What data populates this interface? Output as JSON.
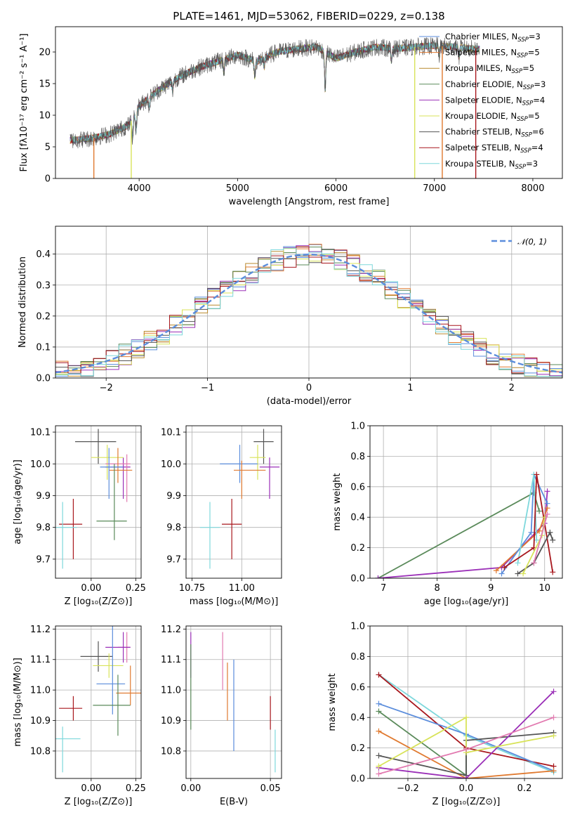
{
  "colors": {
    "Chabrier MILES": "#5b8ddc",
    "Salpeter MILES": "#e07a30",
    "Kroupa MILES": "#b9892d",
    "Chabrier ELODIE": "#5a8a5a",
    "Salpeter ELODIE": "#9b30b8",
    "Kroupa ELODIE": "#d8e35a",
    "Chabrier STELIB": "#555555",
    "Salpeter STELIB": "#a8171d",
    "Kroupa STELIB": "#7ed8dc",
    "pink": "#e27ab0",
    "normal_curve": "#5b8ddc"
  },
  "chart_data": [
    {
      "id": "spectrum",
      "type": "line",
      "title": "PLATE=1461, MJD=53062, FIBERID=0229, z=0.138",
      "xlabel": "wavelength [Angstrom, rest frame]",
      "ylabel": "Flux [fλ10⁻¹⁷ erg cm⁻² s⁻¹ A⁻¹]",
      "xlim": [
        3150,
        8300
      ],
      "ylim": [
        0,
        24
      ],
      "xticks": [
        "4000",
        "5000",
        "6000",
        "7000",
        "8000"
      ],
      "yticks": [
        "0",
        "5",
        "10",
        "15",
        "20"
      ],
      "legend_position": "top-right",
      "legend": [
        {
          "text": "Chabrier MILES, N",
          "sub": "SSP",
          "suffix": "=3",
          "color": "Chabrier MILES"
        },
        {
          "text": "Salpeter MILES, N",
          "sub": "SSP",
          "suffix": "=5",
          "color": "Salpeter MILES"
        },
        {
          "text": "Kroupa MILES, N",
          "sub": "SSP",
          "suffix": "=5",
          "color": "Kroupa MILES"
        },
        {
          "text": "Chabrier ELODIE, N",
          "sub": "SSP",
          "suffix": "=3",
          "color": "Chabrier ELODIE"
        },
        {
          "text": "Salpeter ELODIE, N",
          "sub": "SSP",
          "suffix": "=4",
          "color": "Salpeter ELODIE"
        },
        {
          "text": "Kroupa ELODIE, N",
          "sub": "SSP",
          "suffix": "=5",
          "color": "Kroupa ELODIE"
        },
        {
          "text": "Chabrier STELIB, N",
          "sub": "SSP",
          "suffix": "=6",
          "color": "Chabrier STELIB"
        },
        {
          "text": "Salpeter STELIB, N",
          "sub": "SSP",
          "suffix": "=4",
          "color": "Salpeter STELIB"
        },
        {
          "text": "Kroupa STELIB, N",
          "sub": "SSP",
          "suffix": "=3",
          "color": "Kroupa STELIB"
        }
      ],
      "continuum": {
        "x": [
          3300,
          3500,
          3700,
          3900,
          4000,
          4200,
          4400,
          4600,
          4800,
          5000,
          5200,
          5400,
          5600,
          5800,
          6000,
          6200,
          6400,
          6600,
          6800,
          7000,
          7200,
          7400
        ],
        "y": [
          6.0,
          6.3,
          7.0,
          8.5,
          11.5,
          14.0,
          16.0,
          17.5,
          18.5,
          19.5,
          18.5,
          20.0,
          20.5,
          20.8,
          19.0,
          20.0,
          20.8,
          20.5,
          20.8,
          21.0,
          20.8,
          20.5
        ]
      },
      "cutoffs": [
        {
          "color": "Salpeter MILES",
          "x": 3540,
          "side": "left"
        },
        {
          "color": "Kroupa ELODIE",
          "x": 3920,
          "side": "left"
        },
        {
          "color": "Kroupa ELODIE",
          "x": 6800,
          "side": "right"
        },
        {
          "color": "Salpeter MILES",
          "x": 7080,
          "side": "right"
        },
        {
          "color": "Salpeter STELIB",
          "x": 7420,
          "side": "right"
        }
      ]
    },
    {
      "id": "residuals",
      "type": "histogram",
      "xlabel": "(data-model)/error",
      "ylabel": "Normed distribution",
      "xlim": [
        -2.5,
        2.5
      ],
      "ylim": [
        0,
        0.49
      ],
      "xticks": [
        "−2",
        "−1",
        "0",
        "1",
        "2"
      ],
      "yticks": [
        "0.0",
        "0.1",
        "0.2",
        "0.3",
        "0.4"
      ],
      "bins": 40,
      "legend": "𝒩(0, 1)",
      "legend_position": "top-right"
    },
    {
      "id": "z_vs_age",
      "type": "errorbar",
      "xlabel": "Z [log₁₀(Z/Z⊙)]",
      "ylabel": "age  [log₁₀(age/yr)]",
      "xlim": [
        -0.2,
        0.28
      ],
      "ylim": [
        9.64,
        10.12
      ],
      "xticks": [
        "0.00",
        "0.25"
      ],
      "yticks": [
        "9.7",
        "9.8",
        "9.9",
        "10.0",
        "10.1"
      ],
      "points": [
        {
          "c": "Chabrier STELIB",
          "x": 0.04,
          "xe": [
            0.13,
            0.1
          ],
          "y": 10.07,
          "ye": [
            0.07,
            0.04
          ]
        },
        {
          "c": "Salpeter ELODIE",
          "x": 0.18,
          "xe": [
            0.1,
            0.04
          ],
          "y": 9.99,
          "ye": [
            0.1,
            0.03
          ]
        },
        {
          "c": "Kroupa ELODIE",
          "x": 0.09,
          "xe": [
            0.09,
            0.09
          ],
          "y": 10.02,
          "ye": [
            0.07,
            0.04
          ]
        },
        {
          "c": "pink",
          "x": 0.2,
          "xe": [
            0.12,
            0.02
          ],
          "y": 10.0,
          "ye": [
            0.12,
            0.03
          ]
        },
        {
          "c": "Salpeter MILES",
          "x": 0.15,
          "xe": [
            0.05,
            0.08
          ],
          "y": 9.98,
          "ye": [
            0.04,
            0.07
          ]
        },
        {
          "c": "Chabrier MILES",
          "x": 0.1,
          "xe": [
            0.05,
            0.08
          ],
          "y": 9.99,
          "ye": [
            0.1,
            0.06
          ]
        },
        {
          "c": "Chabrier ELODIE",
          "x": 0.13,
          "xe": [
            0.1,
            0.07
          ],
          "y": 9.82,
          "ye": [
            0.06,
            0.18
          ]
        },
        {
          "c": "Salpeter STELIB",
          "x": -0.1,
          "xe": [
            0.08,
            0.05
          ],
          "y": 9.81,
          "ye": [
            0.11,
            0.08
          ]
        },
        {
          "c": "Kroupa STELIB",
          "x": -0.16,
          "xe": [
            0.06,
            0.08
          ],
          "y": 9.8,
          "ye": [
            0.13,
            0.08
          ]
        }
      ]
    },
    {
      "id": "mass_vs_age",
      "type": "errorbar",
      "xlabel": "mass [log₁₀(M/M⊙)]",
      "ylabel": "",
      "xlim": [
        10.72,
        11.2
      ],
      "ylim": [
        9.64,
        10.12
      ],
      "xticks": [
        "10.75",
        "11.00"
      ],
      "yticks": [
        "9.7",
        "9.8",
        "9.9",
        "10.0",
        "10.1"
      ],
      "points": [
        {
          "c": "Chabrier STELIB",
          "x": 11.11,
          "xe": [
            0.05,
            0.05
          ],
          "y": 10.07,
          "ye": [
            0.07,
            0.04
          ]
        },
        {
          "c": "Salpeter ELODIE",
          "x": 11.14,
          "xe": [
            0.05,
            0.05
          ],
          "y": 9.99,
          "ye": [
            0.1,
            0.03
          ]
        },
        {
          "c": "Kroupa ELODIE",
          "x": 11.08,
          "xe": [
            0.04,
            0.04
          ],
          "y": 10.02,
          "ye": [
            0.07,
            0.04
          ]
        },
        {
          "c": "Chabrier MILES",
          "x": 10.99,
          "xe": [
            0.1,
            0.09
          ],
          "y": 10.0,
          "ye": [
            0.06,
            0.06
          ]
        },
        {
          "c": "Salpeter MILES",
          "x": 11.0,
          "xe": [
            0.04,
            0.12
          ],
          "y": 9.98,
          "ye": [
            0.09,
            0.03
          ]
        },
        {
          "c": "Salpeter STELIB",
          "x": 10.95,
          "xe": [
            0.05,
            0.05
          ],
          "y": 9.81,
          "ye": [
            0.11,
            0.08
          ]
        },
        {
          "c": "Kroupa STELIB",
          "x": 10.84,
          "xe": [
            0.05,
            0.05
          ],
          "y": 9.8,
          "ye": [
            0.13,
            0.08
          ]
        }
      ]
    },
    {
      "id": "age_vs_weight",
      "type": "line",
      "xlabel": "age  [log₁₀(age/yr)]",
      "ylabel": "mass weight",
      "xlim": [
        6.75,
        10.33
      ],
      "ylim": [
        0,
        1
      ],
      "xticks": [
        "7",
        "8",
        "9",
        "10"
      ],
      "yticks": [
        "0.0",
        "0.2",
        "0.4",
        "0.6",
        "0.8",
        "1.0"
      ],
      "series": [
        {
          "c": "Chabrier ELODIE",
          "x": [
            6.9,
            9.8,
            9.9
          ],
          "y": [
            0.0,
            0.56,
            0.44
          ]
        },
        {
          "c": "Salpeter ELODIE",
          "x": [
            6.9,
            9.2,
            10.0,
            10.05
          ],
          "y": [
            0.0,
            0.07,
            0.36,
            0.57
          ]
        },
        {
          "c": "Salpeter MILES",
          "x": [
            9.1,
            9.9,
            10.05
          ],
          "y": [
            0.05,
            0.31,
            0.46
          ]
        },
        {
          "c": "Chabrier MILES",
          "x": [
            9.2,
            9.75,
            9.8,
            10.05
          ],
          "y": [
            0.03,
            0.3,
            0.68,
            0.49
          ]
        },
        {
          "c": "Kroupa STELIB",
          "x": [
            9.5,
            9.8,
            9.85
          ],
          "y": [
            0.1,
            0.68,
            0.25
          ]
        },
        {
          "c": "Salpeter STELIB",
          "x": [
            9.25,
            9.8,
            9.85,
            10.15
          ],
          "y": [
            0.07,
            0.2,
            0.68,
            0.04
          ]
        },
        {
          "c": "Chabrier STELIB",
          "x": [
            9.5,
            9.8,
            10.1,
            10.15
          ],
          "y": [
            0.03,
            0.1,
            0.3,
            0.25
          ]
        },
        {
          "c": "Kroupa ELODIE",
          "x": [
            9.6,
            9.95,
            10.0
          ],
          "y": [
            0.03,
            0.28,
            0.4
          ]
        },
        {
          "c": "pink",
          "x": [
            9.8,
            10.05
          ],
          "y": [
            0.1,
            0.42
          ]
        }
      ]
    },
    {
      "id": "z_vs_mass",
      "type": "errorbar",
      "xlabel": "Z [log₁₀(Z/Z⊙)]",
      "ylabel": "mass [log₁₀(M/M⊙)]",
      "xlim": [
        -0.2,
        0.28
      ],
      "ylim": [
        10.71,
        11.21
      ],
      "xticks": [
        "0.00",
        "0.25"
      ],
      "yticks": [
        "10.8",
        "10.9",
        "11.0",
        "11.1",
        "11.2"
      ],
      "points": [
        {
          "c": "pink",
          "x": 0.2,
          "xe": [
            0.05,
            0.02
          ],
          "y": 11.14,
          "ye": [
            0.05,
            0.05
          ]
        },
        {
          "c": "Salpeter ELODIE",
          "x": 0.18,
          "xe": [
            0.1,
            0.04
          ],
          "y": 11.14,
          "ye": [
            0.05,
            0.05
          ]
        },
        {
          "c": "Chabrier STELIB",
          "x": 0.04,
          "xe": [
            0.1,
            0.08
          ],
          "y": 11.11,
          "ye": [
            0.05,
            0.05
          ]
        },
        {
          "c": "Kroupa ELODIE",
          "x": 0.1,
          "xe": [
            0.09,
            0.08
          ],
          "y": 11.08,
          "ye": [
            0.04,
            0.04
          ]
        },
        {
          "c": "Chabrier MILES",
          "x": 0.12,
          "xe": [
            0.09,
            0.07
          ],
          "y": 11.02,
          "ye": [
            0.1,
            0.2
          ]
        },
        {
          "c": "Salpeter MILES",
          "x": 0.22,
          "xe": [
            0.08,
            0.06
          ],
          "y": 10.99,
          "ye": [
            0.04,
            0.09
          ]
        },
        {
          "c": "Chabrier ELODIE",
          "x": 0.15,
          "xe": [
            0.14,
            0.07
          ],
          "y": 10.95,
          "ye": [
            0.1,
            0.1
          ]
        },
        {
          "c": "Salpeter STELIB",
          "x": -0.1,
          "xe": [
            0.08,
            0.05
          ],
          "y": 10.94,
          "ye": [
            0.04,
            0.04
          ]
        },
        {
          "c": "Kroupa STELIB",
          "x": -0.16,
          "xe": [
            0.06,
            0.1
          ],
          "y": 10.84,
          "ye": [
            0.11,
            0.04
          ]
        }
      ]
    },
    {
      "id": "ebv_vs_mass",
      "type": "errorbar",
      "xlabel": "E(B-V)",
      "ylabel": "",
      "xlim": [
        -0.003,
        0.057
      ],
      "ylim": [
        10.71,
        11.21
      ],
      "xticks": [
        "0.00",
        "0.05"
      ],
      "yticks": [
        "10.8",
        "10.9",
        "11.0",
        "11.1",
        "11.2"
      ],
      "points": [
        {
          "c": "Salpeter ELODIE",
          "x": 0.0,
          "y": 11.14,
          "ye": [
            0.1,
            0.05
          ]
        },
        {
          "c": "Chabrier ELODIE",
          "x": 0.0,
          "y": 10.95,
          "ye": [
            0.08,
            0.2
          ]
        },
        {
          "c": "pink",
          "x": 0.02,
          "y": 11.1,
          "ye": [
            0.1,
            0.09
          ]
        },
        {
          "c": "Salpeter MILES",
          "x": 0.023,
          "y": 11.0,
          "ye": [
            0.1,
            0.09
          ]
        },
        {
          "c": "Chabrier MILES",
          "x": 0.027,
          "y": 10.95,
          "ye": [
            0.15,
            0.15
          ]
        },
        {
          "c": "Salpeter STELIB",
          "x": 0.05,
          "y": 10.94,
          "ye": [
            0.07,
            0.04
          ]
        },
        {
          "c": "Kroupa STELIB",
          "x": 0.053,
          "y": 10.8,
          "ye": [
            0.07,
            0.07
          ]
        }
      ]
    },
    {
      "id": "z_vs_weight",
      "type": "line",
      "xlabel": "Z [log₁₀(Z/Z⊙)]",
      "ylabel": "mass weight",
      "xlim": [
        -0.33,
        0.33
      ],
      "ylim": [
        0,
        1
      ],
      "xticks": [
        "−0.2",
        "0.0",
        "0.2"
      ],
      "yticks": [
        "0.0",
        "0.2",
        "0.4",
        "0.6",
        "0.8",
        "1.0"
      ],
      "series": [
        {
          "c": "Kroupa STELIB",
          "x": [
            -0.3,
            0.0,
            0.3
          ],
          "y": [
            0.68,
            0.28,
            0.04
          ]
        },
        {
          "c": "Salpeter STELIB",
          "x": [
            -0.3,
            0.0,
            0.3
          ],
          "y": [
            0.68,
            0.2,
            0.08
          ]
        },
        {
          "c": "Chabrier MILES",
          "x": [
            -0.3,
            0.0,
            0.3
          ],
          "y": [
            0.49,
            0.29,
            0.05
          ]
        },
        {
          "c": "Chabrier ELODIE",
          "x": [
            -0.3,
            0.0,
            0.0
          ],
          "y": [
            0.44,
            0.02,
            0.25
          ]
        },
        {
          "c": "Salpeter MILES",
          "x": [
            -0.3,
            0.0,
            0.3
          ],
          "y": [
            0.31,
            0.0,
            0.05
          ]
        },
        {
          "c": "Chabrier STELIB",
          "x": [
            -0.3,
            0.0,
            0.0,
            0.3
          ],
          "y": [
            0.15,
            0.02,
            0.25,
            0.3
          ]
        },
        {
          "c": "Salpeter ELODIE",
          "x": [
            -0.3,
            0.0,
            0.3
          ],
          "y": [
            0.07,
            0.0,
            0.57
          ]
        },
        {
          "c": "Kroupa ELODIE",
          "x": [
            -0.3,
            0.0,
            0.0,
            0.3
          ],
          "y": [
            0.08,
            0.4,
            0.17,
            0.28
          ]
        },
        {
          "c": "pink",
          "x": [
            -0.3,
            0.0,
            0.3
          ],
          "y": [
            0.03,
            0.19,
            0.4
          ]
        }
      ]
    }
  ]
}
